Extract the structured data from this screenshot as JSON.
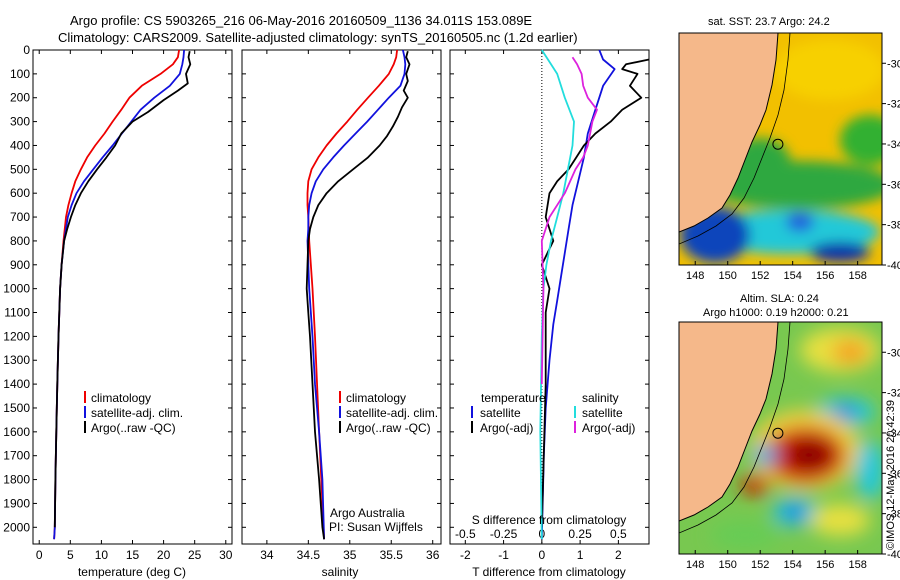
{
  "header": {
    "line1": "Argo profile: CS 5903265_216 06-May-2016 20160509_1136 34.011S 153.089E",
    "line2": "Climatology: CARS2009. Satellite-adjusted climatology: synTS_20160505.nc (1.2d earlier)"
  },
  "side_label": "©IMOS 12-May-2016 20:42:39",
  "colors": {
    "climatology": "#ee0000",
    "satellite": "#1111dd",
    "argo": "#000000",
    "argo_s": "#dd22dd",
    "satellite_s": "#22dddd"
  },
  "chart_data": [
    {
      "type": "line",
      "id": "temperature",
      "xlabel": "temperature (deg C)",
      "ylabel": "",
      "xlim": [
        -1,
        31
      ],
      "ylim": [
        2070,
        0
      ],
      "xticks": [
        0,
        5,
        10,
        15,
        20,
        25,
        30
      ],
      "xtick_labels": [
        "0",
        "5",
        "10",
        "15",
        "20",
        "25",
        "30"
      ],
      "yticks": [
        0,
        100,
        200,
        300,
        400,
        500,
        600,
        700,
        800,
        900,
        1000,
        1100,
        1200,
        1300,
        1400,
        1500,
        1600,
        1700,
        1800,
        1900,
        2000
      ],
      "ytick_labels": [
        "0",
        "100",
        "200",
        "300",
        "400",
        "500",
        "600",
        "700",
        "800",
        "900",
        "1000",
        "1100",
        "1200",
        "1300",
        "1400",
        "1500",
        "1600",
        "1700",
        "1800",
        "1900",
        "2000"
      ],
      "legend": {
        "placement": "lower-center",
        "entries": [
          "climatology",
          "satellite-adj. clim.",
          "Argo(..raw -QC)"
        ]
      },
      "series": [
        {
          "name": "climatology",
          "color": "#ee0000",
          "x": [
            22.5,
            22.3,
            21.5,
            19.5,
            16.5,
            14.5,
            13.2,
            11.8,
            10.5,
            9.0,
            7.7,
            6.7,
            5.8,
            5.2,
            4.7,
            4.3,
            3.9,
            3.6,
            3.35,
            3.1,
            2.9,
            2.75,
            2.6,
            2.5,
            2.4
          ],
          "y": [
            0,
            30,
            60,
            100,
            150,
            200,
            250,
            300,
            350,
            400,
            450,
            500,
            550,
            600,
            650,
            700,
            800,
            900,
            1000,
            1200,
            1400,
            1600,
            1800,
            2000,
            2050
          ]
        },
        {
          "name": "satellite-adj. clim.",
          "color": "#1111dd",
          "x": [
            23.3,
            23.2,
            23.0,
            22.6,
            21.0,
            18.5,
            16.3,
            14.8,
            13.3,
            11.8,
            10.2,
            8.7,
            7.2,
            6.0,
            5.2,
            4.6,
            4.0,
            3.6,
            3.35,
            3.1,
            2.9,
            2.75,
            2.6,
            2.5,
            2.4
          ],
          "y": [
            0,
            30,
            60,
            100,
            150,
            200,
            250,
            300,
            350,
            400,
            450,
            500,
            550,
            600,
            650,
            700,
            800,
            900,
            1000,
            1200,
            1400,
            1600,
            1800,
            2000,
            2050
          ]
        },
        {
          "name": "Argo(..raw -QC)",
          "color": "#000000",
          "x": [
            24.2,
            24.0,
            24.3,
            23.6,
            23.9,
            22.3,
            20.0,
            17.5,
            15.0,
            13.2,
            12.2,
            10.8,
            9.3,
            7.9,
            6.7,
            5.8,
            5.1,
            4.5,
            4.0,
            3.6,
            3.35,
            3.1,
            2.9,
            2.75,
            2.6,
            2.5
          ],
          "y": [
            5,
            30,
            60,
            100,
            140,
            170,
            210,
            260,
            300,
            350,
            400,
            450,
            500,
            550,
            600,
            650,
            700,
            750,
            800,
            900,
            1000,
            1200,
            1400,
            1600,
            1800,
            2000
          ]
        }
      ]
    },
    {
      "type": "line",
      "id": "salinity",
      "xlabel": "salinity",
      "ylabel": "",
      "xlim": [
        33.7,
        36.1
      ],
      "ylim": [
        2070,
        0
      ],
      "xticks": [
        34,
        34.5,
        35,
        35.5,
        36
      ],
      "xtick_labels": [
        "34",
        "34.5",
        "35",
        "35.5",
        "36"
      ],
      "legend": {
        "placement": "lower-center",
        "entries": [
          "climatology",
          "satellite-adj. clim.",
          "Argo(..raw -QC)"
        ]
      },
      "annotation": [
        "Argo Australia",
        "PI: Susan Wijffels"
      ],
      "series": [
        {
          "name": "climatology",
          "color": "#ee0000",
          "x": [
            35.57,
            35.56,
            35.53,
            35.47,
            35.35,
            35.22,
            35.09,
            34.97,
            34.84,
            34.72,
            34.62,
            34.54,
            34.5,
            34.49,
            34.49,
            34.5,
            34.51,
            34.55,
            34.58,
            34.63,
            34.67,
            34.69
          ],
          "y": [
            0,
            30,
            60,
            100,
            150,
            200,
            250,
            300,
            350,
            400,
            450,
            500,
            550,
            600,
            650,
            700,
            800,
            1000,
            1200,
            1600,
            1900,
            2050
          ]
        },
        {
          "name": "satellite-adj. clim.",
          "color": "#1111dd",
          "x": [
            35.64,
            35.66,
            35.67,
            35.66,
            35.61,
            35.47,
            35.34,
            35.21,
            35.07,
            34.93,
            34.8,
            34.68,
            34.59,
            34.54,
            34.51,
            34.5,
            34.5,
            34.49,
            34.51,
            34.55,
            34.58,
            34.63,
            34.67,
            34.69
          ],
          "y": [
            0,
            30,
            60,
            100,
            150,
            200,
            250,
            300,
            350,
            400,
            450,
            500,
            550,
            600,
            650,
            700,
            750,
            800,
            1000,
            1200,
            1400,
            1600,
            1800,
            2050
          ]
        },
        {
          "name": "Argo(..raw -QC)",
          "color": "#000000",
          "x": [
            35.7,
            35.68,
            35.72,
            35.68,
            35.7,
            35.65,
            35.7,
            35.63,
            35.58,
            35.52,
            35.45,
            35.36,
            35.22,
            35.04,
            34.86,
            34.72,
            34.62,
            34.56,
            34.52,
            34.5,
            34.49,
            34.48,
            34.5,
            34.52,
            34.55,
            34.58,
            34.63,
            34.67,
            34.69
          ],
          "y": [
            5,
            30,
            60,
            100,
            130,
            170,
            200,
            240,
            280,
            320,
            360,
            400,
            450,
            500,
            550,
            600,
            650,
            700,
            750,
            800,
            900,
            1000,
            1100,
            1200,
            1400,
            1600,
            1800,
            2000,
            2050
          ]
        }
      ]
    },
    {
      "type": "line",
      "id": "differences",
      "xlabel": "T difference from climatology",
      "x2label": "S difference from climatology",
      "ylabel": "",
      "xlim": [
        -2.4,
        2.8
      ],
      "ylim": [
        2070,
        0
      ],
      "xticks": [
        -2,
        -1,
        0,
        1,
        2
      ],
      "xtick_labels": [
        "-2",
        "-1",
        "0",
        "1",
        "2"
      ],
      "x2ticks": [
        -0.5,
        -0.25,
        0,
        0.25,
        0.5
      ],
      "x2tick_labels": [
        "-0.5",
        "-0.25",
        "0",
        "0.25",
        "0.5"
      ],
      "legend": {
        "placement": "lower-center",
        "headers": [
          "temperature",
          "salinity"
        ],
        "entries": [
          "satellite",
          "Argo(-adj)",
          "satellite",
          "Argo(-adj)"
        ]
      },
      "series": [
        {
          "name": "satellite",
          "group": "temperature",
          "color": "#1111dd",
          "x": [
            1.5,
            1.6,
            1.9,
            1.6,
            1.4,
            1.2,
            1.1,
            0.95,
            0.8,
            0.7,
            0.6,
            0.5,
            0.4,
            0.3,
            0.2,
            0.1,
            0.05,
            0.0
          ],
          "y": [
            0,
            40,
            80,
            150,
            250,
            350,
            450,
            550,
            650,
            750,
            850,
            950,
            1050,
            1150,
            1300,
            1500,
            1700,
            2050
          ]
        },
        {
          "name": "Argo(-adj)",
          "group": "temperature",
          "color": "#000000",
          "x": [
            2.8,
            2.2,
            2.1,
            2.5,
            2.3,
            2.6,
            2.1,
            1.8,
            1.4,
            1.1,
            0.9,
            0.7,
            0.4,
            0.2,
            0.1,
            0.3,
            0.0,
            0.2,
            0.1,
            0.1,
            0.0
          ],
          "y": [
            40,
            60,
            80,
            100,
            150,
            200,
            250,
            300,
            350,
            400,
            450,
            500,
            550,
            600,
            700,
            800,
            900,
            1000,
            1100,
            1400,
            2000
          ]
        },
        {
          "name": "satellite",
          "group": "salinity",
          "color": "#22dddd",
          "x": [
            0.0,
            0.05,
            0.1,
            0.15,
            0.21,
            0.2,
            0.17,
            0.14,
            0.1,
            0.06,
            0.03,
            0.01,
            0.0,
            -0.01,
            0.0
          ],
          "y": [
            0,
            50,
            100,
            200,
            300,
            400,
            500,
            600,
            700,
            800,
            900,
            1000,
            1200,
            1600,
            2050
          ]
        },
        {
          "name": "Argo(-adj)",
          "group": "salinity",
          "color": "#dd22dd",
          "x": [
            0.2,
            0.23,
            0.26,
            0.27,
            0.3,
            0.36,
            0.33,
            0.3,
            0.27,
            0.22,
            0.15,
            0.05,
            0.0,
            0.01,
            0.0
          ],
          "y": [
            30,
            60,
            100,
            150,
            200,
            250,
            300,
            400,
            450,
            500,
            600,
            700,
            800,
            1000,
            1400
          ]
        }
      ]
    },
    {
      "type": "heatmap",
      "id": "sst-map",
      "title": "sat. SST: 23.7  Argo: 24.2",
      "xlim": [
        147,
        159.5
      ],
      "ylim": [
        -40,
        -28.5
      ],
      "xticks": [
        148,
        150,
        152,
        154,
        156,
        158
      ],
      "xtick_labels": [
        "148",
        "150",
        "152",
        "154",
        "156",
        "158"
      ],
      "yticks": [
        -30,
        -32,
        -34,
        -36,
        -38,
        -40
      ],
      "ytick_labels": [
        "-30",
        "-32",
        "-34",
        "-36",
        "-38",
        "-40"
      ],
      "marker": {
        "lon": 153.089,
        "lat": -34.011
      }
    },
    {
      "type": "heatmap",
      "id": "sla-map",
      "title": "Altim. SLA: 0.24",
      "subtitle": "Argo h1000: 0.19 h2000: 0.21",
      "xlim": [
        147,
        159.5
      ],
      "ylim": [
        -40,
        -28.5
      ],
      "xticks": [
        148,
        150,
        152,
        154,
        156,
        158
      ],
      "xtick_labels": [
        "148",
        "150",
        "152",
        "154",
        "156",
        "158"
      ],
      "yticks": [
        -30,
        -32,
        -34,
        -36,
        -38,
        -40
      ],
      "ytick_labels": [
        "-30",
        "-32",
        "-34",
        "-36",
        "-38",
        "-40"
      ],
      "marker": {
        "lon": 153.089,
        "lat": -34.011
      }
    }
  ]
}
